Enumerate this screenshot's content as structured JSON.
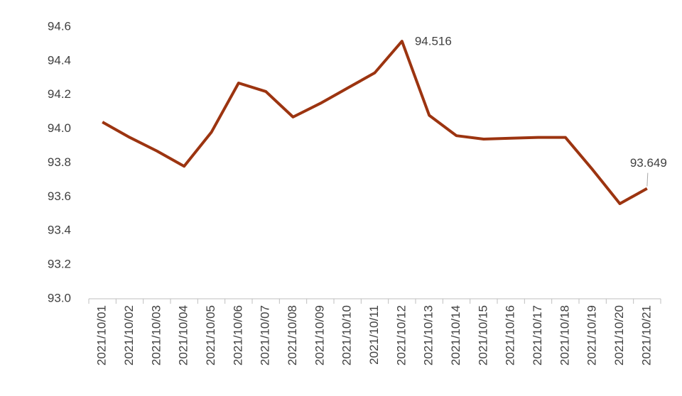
{
  "chart_data": {
    "type": "line",
    "categories": [
      "2021/10/01",
      "2021/10/02",
      "2021/10/03",
      "2021/10/04",
      "2021/10/05",
      "2021/10/06",
      "2021/10/07",
      "2021/10/08",
      "2021/10/09",
      "2021/10/10",
      "2021/10/11",
      "2021/10/12",
      "2021/10/13",
      "2021/10/14",
      "2021/10/15",
      "2021/10/16",
      "2021/10/17",
      "2021/10/18",
      "2021/10/19",
      "2021/10/20",
      "2021/10/21"
    ],
    "values": [
      94.04,
      93.95,
      93.87,
      93.78,
      93.98,
      94.27,
      94.22,
      94.07,
      94.15,
      94.24,
      94.33,
      94.516,
      94.08,
      93.96,
      93.94,
      93.945,
      93.95,
      93.95,
      93.76,
      93.56,
      93.649
    ],
    "value_labels": [
      null,
      null,
      null,
      null,
      null,
      null,
      null,
      null,
      null,
      null,
      null,
      "94.516",
      null,
      null,
      null,
      null,
      null,
      null,
      null,
      null,
      "93.649"
    ],
    "color": "#9c3410",
    "ylim": [
      93.0,
      94.6
    ],
    "yticks": [
      {
        "value": 93.0,
        "label": "93.0"
      },
      93.2,
      93.4,
      93.6,
      93.8,
      {
        "value": 94.0,
        "label": "94.0"
      },
      94.2,
      94.4,
      94.6
    ],
    "grid": false
  }
}
